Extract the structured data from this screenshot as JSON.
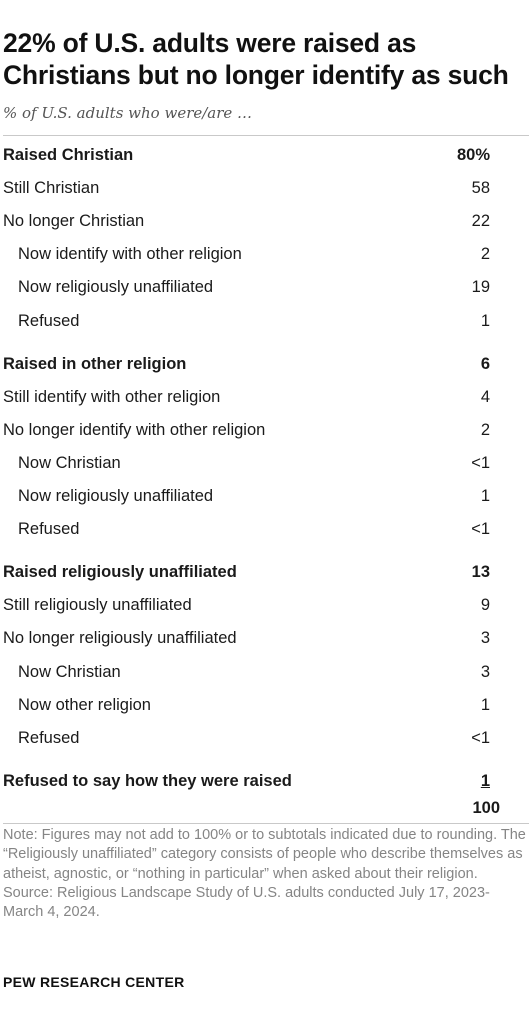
{
  "title": "22% of U.S. adults were raised as Christians but no longer identify as such",
  "subtitle": "% of U.S. adults who were/are …",
  "chart_data": {
    "type": "table",
    "rows": [
      {
        "label": "Raised Christian",
        "value": "80%",
        "level": "section"
      },
      {
        "label": "Still Christian",
        "value": "58",
        "level": "item"
      },
      {
        "label": "No longer Christian",
        "value": "22",
        "level": "item"
      },
      {
        "label": "Now identify with other religion",
        "value": "2",
        "level": "sub"
      },
      {
        "label": "Now religiously unaffiliated",
        "value": "19",
        "level": "sub"
      },
      {
        "label": "Refused",
        "value": "1",
        "level": "sub"
      },
      {
        "label": "Raised in other religion",
        "value": "6",
        "level": "section"
      },
      {
        "label": "Still identify with other religion",
        "value": "4",
        "level": "item"
      },
      {
        "label": "No longer identify with other religion",
        "value": "2",
        "level": "item"
      },
      {
        "label": "Now Christian",
        "value": "<1",
        "level": "sub"
      },
      {
        "label": "Now religiously unaffiliated",
        "value": "1",
        "level": "sub"
      },
      {
        "label": "Refused",
        "value": "<1",
        "level": "sub"
      },
      {
        "label": "Raised religiously unaffiliated",
        "value": "13",
        "level": "section"
      },
      {
        "label": "Still religiously unaffiliated",
        "value": "9",
        "level": "item"
      },
      {
        "label": "No longer religiously unaffiliated",
        "value": "3",
        "level": "item"
      },
      {
        "label": "Now Christian",
        "value": "3",
        "level": "sub"
      },
      {
        "label": "Now other religion",
        "value": "1",
        "level": "sub"
      },
      {
        "label": "Refused",
        "value": "<1",
        "level": "sub"
      },
      {
        "label": "Refused to say how they were raised",
        "value": "1",
        "level": "section",
        "underline": true
      }
    ],
    "total": "100"
  },
  "note": "Note: Figures may not add to 100% or to subtotals indicated due to rounding. The “Religiously unaffiliated” category consists of people who describe themselves as atheist, agnostic, or “nothing in particular” when asked about their religion.",
  "source": "Source: Religious Landscape Study of U.S. adults conducted July 17, 2023-March 4, 2024.",
  "logo": "PEW RESEARCH CENTER"
}
